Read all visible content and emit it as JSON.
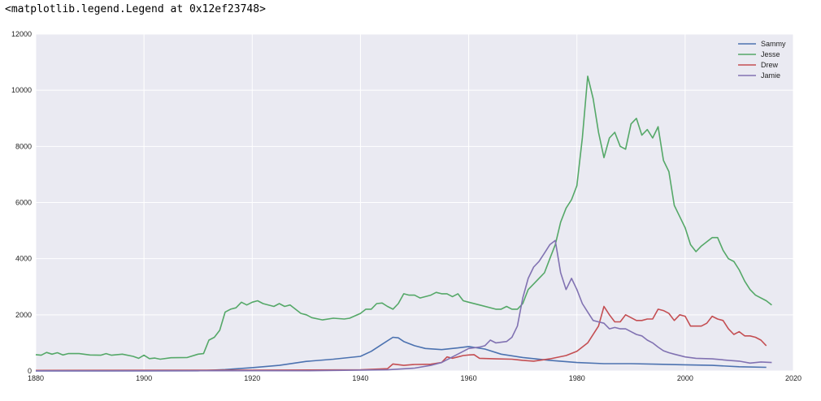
{
  "header": {
    "repr_text": "<matplotlib.legend.Legend at 0x12ef23748>"
  },
  "colors": {
    "plot_bg": "#eaeaf2",
    "grid": "#ffffff",
    "Sammy": "#4c72b0",
    "Jesse": "#55a868",
    "Drew": "#c44e52",
    "Jamie": "#8172b2"
  },
  "chart_data": {
    "type": "line",
    "title": "",
    "xlabel": "",
    "ylabel": "",
    "xlim": [
      1880,
      2020
    ],
    "ylim": [
      0,
      12000
    ],
    "xticks": [
      1880,
      1900,
      1920,
      1940,
      1960,
      1980,
      2000,
      2020
    ],
    "yticks": [
      0,
      2000,
      4000,
      6000,
      8000,
      10000,
      12000
    ],
    "grid": true,
    "legend": "top-right",
    "series": [
      {
        "name": "Sammy",
        "points": [
          [
            1880,
            0
          ],
          [
            1910,
            5
          ],
          [
            1915,
            50
          ],
          [
            1920,
            120
          ],
          [
            1925,
            200
          ],
          [
            1930,
            340
          ],
          [
            1935,
            420
          ],
          [
            1940,
            520
          ],
          [
            1942,
            700
          ],
          [
            1944,
            950
          ],
          [
            1946,
            1200
          ],
          [
            1947,
            1180
          ],
          [
            1948,
            1050
          ],
          [
            1950,
            900
          ],
          [
            1952,
            800
          ],
          [
            1955,
            760
          ],
          [
            1958,
            820
          ],
          [
            1960,
            870
          ],
          [
            1963,
            780
          ],
          [
            1966,
            600
          ],
          [
            1970,
            480
          ],
          [
            1975,
            380
          ],
          [
            1980,
            300
          ],
          [
            1985,
            260
          ],
          [
            1990,
            260
          ],
          [
            1995,
            240
          ],
          [
            2000,
            220
          ],
          [
            2005,
            200
          ],
          [
            2010,
            150
          ],
          [
            2015,
            130
          ]
        ]
      },
      {
        "name": "Jesse",
        "points": [
          [
            1880,
            580
          ],
          [
            1881,
            560
          ],
          [
            1882,
            660
          ],
          [
            1883,
            600
          ],
          [
            1884,
            650
          ],
          [
            1885,
            570
          ],
          [
            1886,
            620
          ],
          [
            1888,
            620
          ],
          [
            1890,
            570
          ],
          [
            1892,
            560
          ],
          [
            1893,
            620
          ],
          [
            1894,
            560
          ],
          [
            1896,
            600
          ],
          [
            1898,
            520
          ],
          [
            1899,
            450
          ],
          [
            1900,
            560
          ],
          [
            1901,
            440
          ],
          [
            1902,
            460
          ],
          [
            1903,
            420
          ],
          [
            1905,
            470
          ],
          [
            1908,
            480
          ],
          [
            1910,
            600
          ],
          [
            1911,
            620
          ],
          [
            1912,
            1100
          ],
          [
            1913,
            1200
          ],
          [
            1914,
            1450
          ],
          [
            1915,
            2100
          ],
          [
            1916,
            2200
          ],
          [
            1917,
            2250
          ],
          [
            1918,
            2450
          ],
          [
            1919,
            2350
          ],
          [
            1920,
            2450
          ],
          [
            1921,
            2500
          ],
          [
            1922,
            2400
          ],
          [
            1924,
            2300
          ],
          [
            1925,
            2400
          ],
          [
            1926,
            2300
          ],
          [
            1927,
            2350
          ],
          [
            1928,
            2200
          ],
          [
            1929,
            2050
          ],
          [
            1930,
            2000
          ],
          [
            1931,
            1900
          ],
          [
            1933,
            1820
          ],
          [
            1935,
            1880
          ],
          [
            1937,
            1850
          ],
          [
            1938,
            1880
          ],
          [
            1940,
            2050
          ],
          [
            1941,
            2200
          ],
          [
            1942,
            2200
          ],
          [
            1943,
            2400
          ],
          [
            1944,
            2420
          ],
          [
            1945,
            2300
          ],
          [
            1946,
            2200
          ],
          [
            1947,
            2400
          ],
          [
            1948,
            2750
          ],
          [
            1949,
            2700
          ],
          [
            1950,
            2700
          ],
          [
            1951,
            2600
          ],
          [
            1953,
            2700
          ],
          [
            1954,
            2800
          ],
          [
            1955,
            2750
          ],
          [
            1956,
            2750
          ],
          [
            1957,
            2650
          ],
          [
            1958,
            2750
          ],
          [
            1959,
            2500
          ],
          [
            1960,
            2450
          ],
          [
            1962,
            2350
          ],
          [
            1965,
            2200
          ],
          [
            1966,
            2200
          ],
          [
            1967,
            2300
          ],
          [
            1968,
            2200
          ],
          [
            1969,
            2200
          ],
          [
            1970,
            2400
          ],
          [
            1971,
            2900
          ],
          [
            1972,
            3100
          ],
          [
            1973,
            3300
          ],
          [
            1974,
            3500
          ],
          [
            1975,
            4000
          ],
          [
            1976,
            4500
          ],
          [
            1977,
            5300
          ],
          [
            1978,
            5800
          ],
          [
            1979,
            6100
          ],
          [
            1980,
            6600
          ],
          [
            1981,
            8300
          ],
          [
            1982,
            10500
          ],
          [
            1983,
            9700
          ],
          [
            1984,
            8500
          ],
          [
            1985,
            7600
          ],
          [
            1986,
            8300
          ],
          [
            1987,
            8500
          ],
          [
            1988,
            8000
          ],
          [
            1989,
            7900
          ],
          [
            1990,
            8800
          ],
          [
            1991,
            9000
          ],
          [
            1992,
            8400
          ],
          [
            1993,
            8600
          ],
          [
            1994,
            8300
          ],
          [
            1995,
            8700
          ],
          [
            1996,
            7500
          ],
          [
            1997,
            7100
          ],
          [
            1998,
            5900
          ],
          [
            1999,
            5500
          ],
          [
            2000,
            5100
          ],
          [
            2001,
            4500
          ],
          [
            2002,
            4250
          ],
          [
            2003,
            4450
          ],
          [
            2004,
            4600
          ],
          [
            2005,
            4750
          ],
          [
            2006,
            4750
          ],
          [
            2007,
            4300
          ],
          [
            2008,
            4000
          ],
          [
            2009,
            3900
          ],
          [
            2010,
            3600
          ],
          [
            2011,
            3200
          ],
          [
            2012,
            2900
          ],
          [
            2013,
            2700
          ],
          [
            2015,
            2500
          ],
          [
            2016,
            2350
          ]
        ]
      },
      {
        "name": "Drew",
        "points": [
          [
            1880,
            20
          ],
          [
            1920,
            30
          ],
          [
            1940,
            40
          ],
          [
            1945,
            80
          ],
          [
            1946,
            250
          ],
          [
            1948,
            200
          ],
          [
            1950,
            230
          ],
          [
            1953,
            240
          ],
          [
            1955,
            300
          ],
          [
            1956,
            500
          ],
          [
            1957,
            450
          ],
          [
            1958,
            500
          ],
          [
            1959,
            550
          ],
          [
            1960,
            570
          ],
          [
            1961,
            580
          ],
          [
            1962,
            450
          ],
          [
            1965,
            430
          ],
          [
            1968,
            420
          ],
          [
            1970,
            380
          ],
          [
            1972,
            350
          ],
          [
            1975,
            430
          ],
          [
            1978,
            550
          ],
          [
            1980,
            700
          ],
          [
            1982,
            1000
          ],
          [
            1984,
            1600
          ],
          [
            1985,
            2300
          ],
          [
            1986,
            2000
          ],
          [
            1987,
            1750
          ],
          [
            1988,
            1750
          ],
          [
            1989,
            2000
          ],
          [
            1990,
            1900
          ],
          [
            1991,
            1800
          ],
          [
            1992,
            1800
          ],
          [
            1993,
            1850
          ],
          [
            1994,
            1850
          ],
          [
            1995,
            2200
          ],
          [
            1996,
            2150
          ],
          [
            1997,
            2050
          ],
          [
            1998,
            1800
          ],
          [
            1999,
            2000
          ],
          [
            2000,
            1950
          ],
          [
            2001,
            1600
          ],
          [
            2002,
            1600
          ],
          [
            2003,
            1600
          ],
          [
            2004,
            1700
          ],
          [
            2005,
            1950
          ],
          [
            2006,
            1850
          ],
          [
            2007,
            1800
          ],
          [
            2008,
            1500
          ],
          [
            2009,
            1300
          ],
          [
            2010,
            1400
          ],
          [
            2011,
            1250
          ],
          [
            2012,
            1250
          ],
          [
            2013,
            1200
          ],
          [
            2014,
            1100
          ],
          [
            2015,
            900
          ]
        ]
      },
      {
        "name": "Jamie",
        "points": [
          [
            1880,
            5
          ],
          [
            1930,
            10
          ],
          [
            1945,
            40
          ],
          [
            1950,
            100
          ],
          [
            1953,
            200
          ],
          [
            1955,
            300
          ],
          [
            1957,
            500
          ],
          [
            1959,
            700
          ],
          [
            1960,
            800
          ],
          [
            1962,
            850
          ],
          [
            1963,
            900
          ],
          [
            1964,
            1100
          ],
          [
            1965,
            1000
          ],
          [
            1967,
            1050
          ],
          [
            1968,
            1200
          ],
          [
            1969,
            1600
          ],
          [
            1970,
            2600
          ],
          [
            1971,
            3300
          ],
          [
            1972,
            3700
          ],
          [
            1973,
            3900
          ],
          [
            1974,
            4200
          ],
          [
            1975,
            4500
          ],
          [
            1976,
            4650
          ],
          [
            1977,
            3500
          ],
          [
            1978,
            2900
          ],
          [
            1979,
            3300
          ],
          [
            1980,
            2900
          ],
          [
            1981,
            2400
          ],
          [
            1982,
            2100
          ],
          [
            1983,
            1800
          ],
          [
            1984,
            1750
          ],
          [
            1985,
            1700
          ],
          [
            1986,
            1500
          ],
          [
            1987,
            1550
          ],
          [
            1988,
            1500
          ],
          [
            1989,
            1500
          ],
          [
            1990,
            1400
          ],
          [
            1991,
            1300
          ],
          [
            1992,
            1250
          ],
          [
            1993,
            1100
          ],
          [
            1994,
            1000
          ],
          [
            1995,
            850
          ],
          [
            1996,
            720
          ],
          [
            1997,
            650
          ],
          [
            1998,
            600
          ],
          [
            2000,
            500
          ],
          [
            2002,
            450
          ],
          [
            2005,
            430
          ],
          [
            2008,
            380
          ],
          [
            2010,
            350
          ],
          [
            2012,
            280
          ],
          [
            2014,
            320
          ],
          [
            2016,
            300
          ]
        ]
      }
    ]
  }
}
